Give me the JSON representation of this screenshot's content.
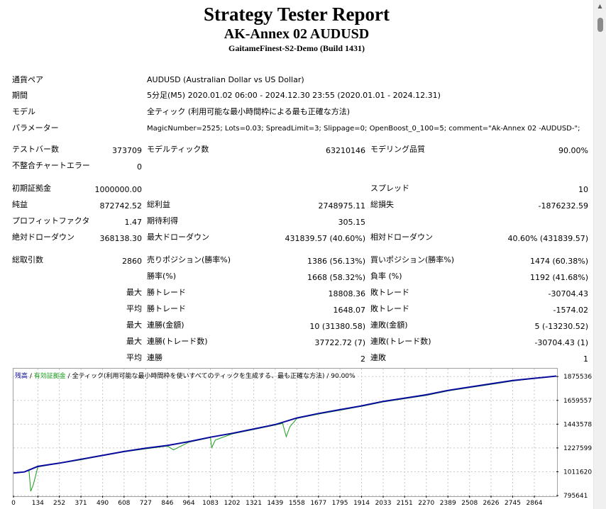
{
  "header": {
    "title": "Strategy Tester Report",
    "subtitle": "AK-Annex 02 AUDUSD",
    "server": "GaitameFinest-S2-Demo (Build 1431)"
  },
  "info": [
    {
      "label": "通貨ペア",
      "value": "AUDUSD (Australian Dollar vs US Dollar)"
    },
    {
      "label": "期間",
      "value": "5分足(M5) 2020.01.02 06:00 - 2024.12.30 23:55 (2020.01.01 - 2024.12.31)"
    },
    {
      "label": "モデル",
      "value": "全ティック (利用可能な最小時間枠による最も正確な方法)"
    },
    {
      "label": "パラメーター",
      "value": "MagicNumber=2525; Lots=0.03; SpreadLimit=3; Slippage=0; OpenBoost_0_100=5; comment=\"Ak-Annex 02 -AUDUSD-\";"
    }
  ],
  "stats": {
    "bars_label": "テストバー数",
    "bars_value": "373709",
    "ticks_label": "モデルティック数",
    "ticks_value": "63210146",
    "quality_label": "モデリング品質",
    "quality_value": "90.00%",
    "mismatch_label": "不整合チャートエラー",
    "mismatch_value": "0",
    "deposit_label": "初期証拠金",
    "deposit_value": "1000000.00",
    "spread_label": "スプレッド",
    "spread_value": "10",
    "net_label": "純益",
    "net_value": "872742.52",
    "gross_profit_label": "総利益",
    "gross_profit_value": "2748975.11",
    "gross_loss_label": "総損失",
    "gross_loss_value": "-1876232.59",
    "pf_label": "プロフィットファクタ",
    "pf_value": "1.47",
    "payoff_label": "期待利得",
    "payoff_value": "305.15",
    "abs_dd_label": "絶対ドローダウン",
    "abs_dd_value": "368138.30",
    "max_dd_label": "最大ドローダウン",
    "max_dd_value": "431839.57 (40.60%)",
    "rel_dd_label": "相対ドローダウン",
    "rel_dd_value": "40.60% (431839.57)",
    "trades_label": "総取引数",
    "trades_value": "2860",
    "short_label": "売りポジション(勝率%)",
    "short_value": "1386 (56.13%)",
    "long_label": "買いポジション(勝率%)",
    "long_value": "1474 (60.38%)",
    "win_label": "勝率(%)",
    "win_value": "1668 (58.32%)",
    "loss_label": "負率 (%)",
    "loss_value": "1192 (41.68%)",
    "max_label": "最大",
    "avg_label": "平均",
    "best_label": "勝トレード",
    "best_value": "18808.36",
    "worst_label": "敗トレード",
    "worst_value": "-30704.43",
    "avg_win_label": "勝トレード",
    "avg_win_value": "1648.07",
    "avg_loss_label": "敗トレード",
    "avg_loss_value": "-1574.02",
    "cons_win_amt_label": "連勝(金額)",
    "cons_win_amt_value": "10 (31380.58)",
    "cons_loss_amt_label": "連敗(金額)",
    "cons_loss_amt_value": "5 (-13230.52)",
    "cons_win_trades_label": "連勝(トレード数)",
    "cons_win_trades_value": "37722.72 (7)",
    "cons_loss_trades_label": "連敗(トレード数)",
    "cons_loss_trades_value": "-30704.43 (1)",
    "avg_cons_win_label": "連勝",
    "avg_cons_win_value": "2",
    "avg_cons_loss_label": "連敗",
    "avg_cons_loss_value": "1"
  },
  "legend": {
    "balance": "残高",
    "sep1": " / ",
    "equity": "有効証拠金",
    "sep2": " / ",
    "rest": "全ティック(利用可能な最小時間枠を使いすべてのティックを生成する、最も正確な方法) / 90.00%"
  },
  "colors": {
    "balance": "#0a0a9e",
    "equity": "#1a9e1a",
    "grid": "#c8c8c8"
  },
  "chart_data": {
    "type": "line",
    "xlabel": "",
    "ylabel": "",
    "xlim": [
      0,
      2985
    ],
    "ylim": [
      795641,
      1947606
    ],
    "x_ticks": [
      "0",
      "134",
      "252",
      "371",
      "490",
      "608",
      "727",
      "846",
      "964",
      "1083",
      "1202",
      "1321",
      "1439",
      "1558",
      "1677",
      "1795",
      "1914",
      "2033",
      "2151",
      "2270",
      "2389",
      "2508",
      "2626",
      "2745",
      "2864"
    ],
    "y_ticks": [
      "795641",
      "1011620",
      "1227599",
      "1443578",
      "1659557",
      "1875536"
    ],
    "series": [
      {
        "name": "残高",
        "x": [
          0,
          60,
          134,
          252,
          371,
          490,
          608,
          727,
          846,
          964,
          1083,
          1202,
          1321,
          1439,
          1500,
          1558,
          1677,
          1795,
          1914,
          2033,
          2151,
          2270,
          2389,
          2508,
          2626,
          2745,
          2864,
          2985
        ],
        "y": [
          1000000,
          1010000,
          1060000,
          1090000,
          1125000,
          1160000,
          1195000,
          1225000,
          1250000,
          1285000,
          1325000,
          1360000,
          1400000,
          1440000,
          1470000,
          1500000,
          1540000,
          1575000,
          1610000,
          1650000,
          1680000,
          1710000,
          1750000,
          1780000,
          1810000,
          1840000,
          1860000,
          1880000
        ]
      },
      {
        "name": "有効証拠金",
        "x": [
          0,
          60,
          85,
          95,
          110,
          134,
          200,
          252,
          371,
          490,
          608,
          727,
          846,
          880,
          964,
          1083,
          1090,
          1110,
          1202,
          1321,
          1439,
          1480,
          1500,
          1520,
          1558,
          1677,
          1795,
          1914,
          2033,
          2151,
          2270,
          2389,
          2508,
          2626,
          2745,
          2864,
          2985
        ],
        "y": [
          1000000,
          1010000,
          1030000,
          835000,
          900000,
          1055000,
          1075000,
          1088000,
          1120000,
          1158000,
          1192000,
          1220000,
          1245000,
          1210000,
          1280000,
          1322000,
          1230000,
          1300000,
          1355000,
          1395000,
          1436000,
          1450000,
          1330000,
          1420000,
          1495000,
          1535000,
          1570000,
          1605000,
          1645000,
          1675000,
          1705000,
          1745000,
          1775000,
          1805000,
          1835000,
          1858000,
          1878000
        ]
      }
    ]
  }
}
